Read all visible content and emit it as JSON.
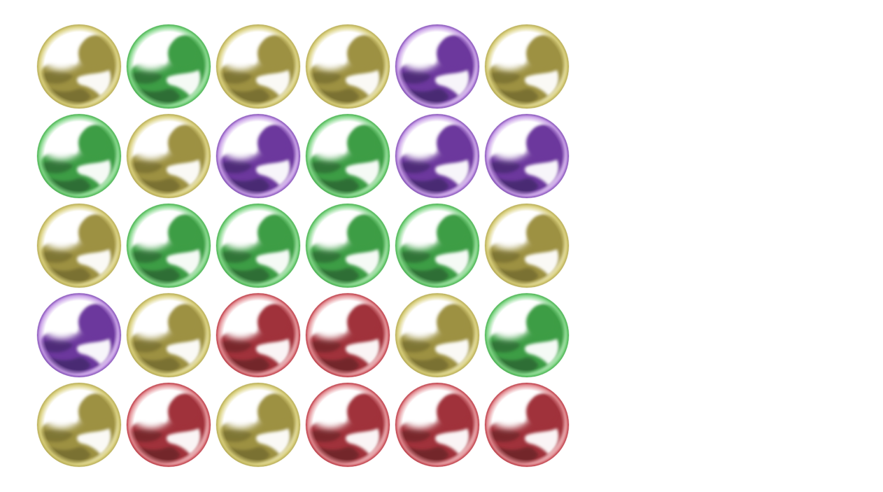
{
  "palette": {
    "yellow": {
      "dark": "#7a7132",
      "mid": "#9d9142",
      "rim": "#d9cf7a",
      "edge": "#b8ad55"
    },
    "green": {
      "dark": "#2f6e34",
      "mid": "#3d9d45",
      "rim": "#7fd685",
      "edge": "#48b24f"
    },
    "purple": {
      "dark": "#4a2a73",
      "mid": "#6c379d",
      "rim": "#c69be6",
      "edge": "#8450b8"
    },
    "red": {
      "dark": "#73272b",
      "mid": "#a0303a",
      "rim": "#e28a90",
      "edge": "#bd3a44"
    }
  },
  "board": {
    "rows": [
      [
        "yellow",
        "green",
        "yellow",
        "yellow",
        "purple",
        "yellow"
      ],
      [
        "green",
        "yellow",
        "purple",
        "green",
        "purple",
        "purple"
      ],
      [
        "yellow",
        "green",
        "green",
        "green",
        "green",
        "yellow"
      ],
      [
        "purple",
        "yellow",
        "red",
        "red",
        "yellow",
        "green"
      ],
      [
        "yellow",
        "red",
        "yellow",
        "red",
        "red",
        "red"
      ]
    ]
  }
}
